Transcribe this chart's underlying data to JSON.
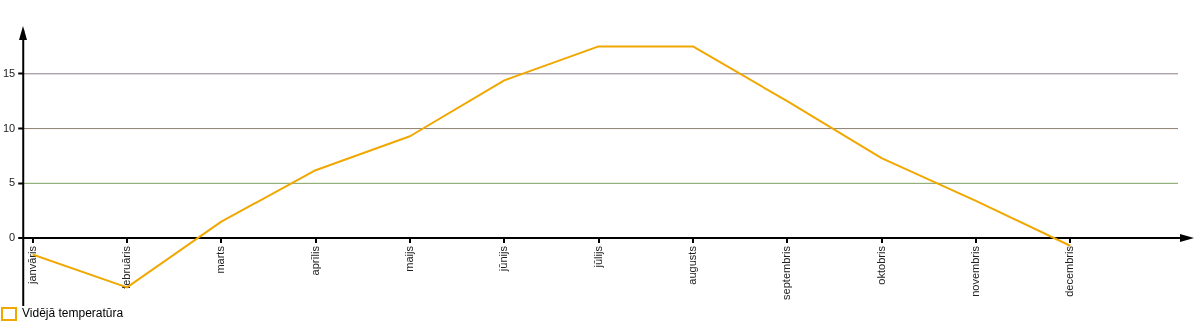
{
  "chart_data": {
    "type": "line",
    "categories": [
      "janvāris",
      "februāris",
      "marts",
      "aprīlis",
      "maijs",
      "jūnijs",
      "jūlijs",
      "augusts",
      "septembris",
      "oktobris",
      "novembris",
      "decembris"
    ],
    "series": [
      {
        "name": "Vidējā temperatūra",
        "color": "#f0a800",
        "values": [
          -1.5,
          -4.5,
          1.5,
          6.2,
          9.3,
          14.4,
          17.5,
          17.5,
          12.5,
          7.3,
          3.4,
          -0.7
        ]
      }
    ],
    "ylim": [
      -6.2,
      19
    ],
    "yticks": [
      0,
      5,
      10,
      15
    ],
    "ref_lines": [
      {
        "axis": "y",
        "value": 5,
        "color": "#7fa060"
      },
      {
        "axis": "y",
        "value": 10,
        "color": "#8c8070"
      },
      {
        "axis": "y",
        "value": 15,
        "color": "#8c7c88"
      }
    ],
    "legend": "bottom left",
    "marker": "none",
    "line_style": "solid"
  }
}
